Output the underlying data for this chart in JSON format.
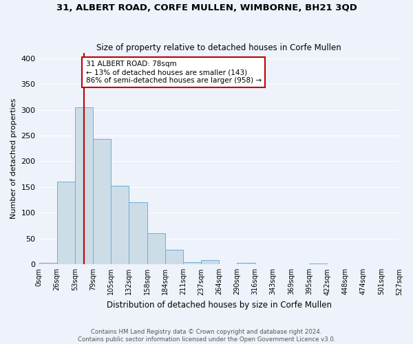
{
  "title": "31, ALBERT ROAD, CORFE MULLEN, WIMBORNE, BH21 3QD",
  "subtitle": "Size of property relative to detached houses in Corfe Mullen",
  "xlabel": "Distribution of detached houses by size in Corfe Mullen",
  "ylabel": "Number of detached properties",
  "footer_line1": "Contains HM Land Registry data © Crown copyright and database right 2024.",
  "footer_line2": "Contains public sector information licensed under the Open Government Licence v3.0.",
  "bin_labels": [
    "0sqm",
    "26sqm",
    "53sqm",
    "79sqm",
    "105sqm",
    "132sqm",
    "158sqm",
    "184sqm",
    "211sqm",
    "237sqm",
    "264sqm",
    "290sqm",
    "316sqm",
    "343sqm",
    "369sqm",
    "395sqm",
    "422sqm",
    "448sqm",
    "474sqm",
    "501sqm",
    "527sqm"
  ],
  "bar_values": [
    3,
    160,
    305,
    243,
    153,
    120,
    60,
    28,
    5,
    8,
    0,
    3,
    0,
    0,
    0,
    2,
    0,
    0,
    0,
    0
  ],
  "bar_color": "#ccdde8",
  "bar_edge_color": "#6aafd6",
  "property_label": "31 ALBERT ROAD: 78sqm",
  "annotation_line1": "← 13% of detached houses are smaller (143)",
  "annotation_line2": "86% of semi-detached houses are larger (958) →",
  "vline_color": "#c00000",
  "annotation_box_color": "#c00000",
  "background_color": "#eef2fb",
  "vline_x": 2.5,
  "ylim": [
    0,
    410
  ],
  "yticks": [
    0,
    50,
    100,
    150,
    200,
    250,
    300,
    350,
    400
  ],
  "figsize": [
    6.0,
    5.0
  ],
  "dpi": 100
}
